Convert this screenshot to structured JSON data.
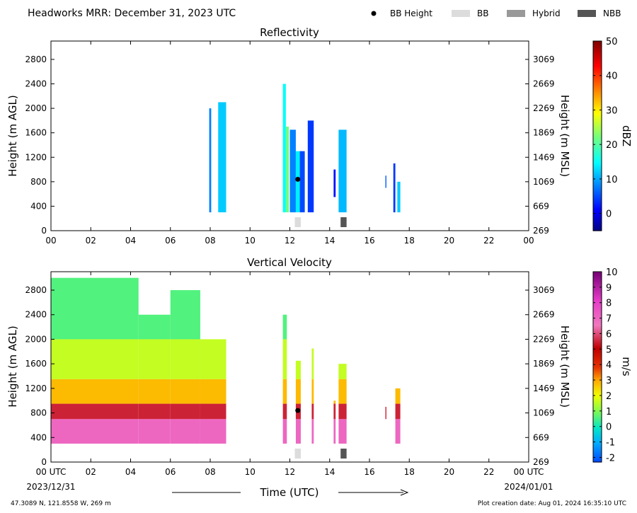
{
  "header": {
    "title": "Headworks MRR:  December 31, 2023 UTC",
    "legend": [
      {
        "label": "BB Height",
        "kind": "dot",
        "color": "#000000"
      },
      {
        "label": "BB",
        "kind": "box",
        "color": "#dcdcdc"
      },
      {
        "label": "Hybrid",
        "kind": "box",
        "color": "#999999"
      },
      {
        "label": "NBB",
        "kind": "box",
        "color": "#555555"
      }
    ]
  },
  "footer": {
    "coords": "47.3089 N, 121.8558 W, 269 m",
    "creation": "Plot creation date: Aug 01, 2024 16:35:10 UTC",
    "xaxis_title": "Time (UTC)",
    "start_date": "2023/12/31",
    "end_date": "2024/01/01"
  },
  "chart_data": [
    {
      "type": "heatmap",
      "title": "Reflectivity",
      "ylabel_left": "Height (m AGL)",
      "ylabel_right": "Height (m MSL)",
      "xlim": [
        0,
        24
      ],
      "ylim": [
        0,
        3100
      ],
      "x_ticks": [
        "00",
        "02",
        "04",
        "06",
        "08",
        "10",
        "12",
        "14",
        "16",
        "18",
        "20",
        "22",
        "00"
      ],
      "y_ticks_left": [
        "0",
        "400",
        "800",
        "1200",
        "1600",
        "2000",
        "2400",
        "2800"
      ],
      "y_ticks_right": [
        "269",
        "669",
        "1069",
        "1469",
        "1869",
        "2269",
        "2669",
        "3069"
      ],
      "colorbar": {
        "label": "dBZ",
        "min": -5,
        "max": 50,
        "ticks": [
          "0",
          "10",
          "20",
          "30",
          "40",
          "50"
        ],
        "colormap": "jet"
      },
      "echo_segments": [
        {
          "t0": 7.95,
          "t1": 8.05,
          "h0": 300,
          "h1": 2000,
          "dbz": 8
        },
        {
          "t0": 8.4,
          "t1": 8.8,
          "h0": 300,
          "h1": 2100,
          "dbz": 12
        },
        {
          "t0": 11.65,
          "t1": 11.8,
          "h0": 300,
          "h1": 2400,
          "dbz": 15
        },
        {
          "t0": 11.8,
          "t1": 11.95,
          "h0": 300,
          "h1": 1700,
          "dbz": 22
        },
        {
          "t0": 12.0,
          "t1": 12.3,
          "h0": 300,
          "h1": 1650,
          "dbz": 8
        },
        {
          "t0": 12.3,
          "t1": 12.5,
          "h0": 300,
          "h1": 1300,
          "dbz": 14
        },
        {
          "t0": 12.5,
          "t1": 12.75,
          "h0": 300,
          "h1": 1300,
          "dbz": 5
        },
        {
          "t0": 12.9,
          "t1": 13.2,
          "h0": 300,
          "h1": 1800,
          "dbz": 4
        },
        {
          "t0": 14.2,
          "t1": 14.3,
          "h0": 550,
          "h1": 1000,
          "dbz": 2
        },
        {
          "t0": 14.45,
          "t1": 14.85,
          "h0": 300,
          "h1": 1650,
          "dbz": 11
        },
        {
          "t0": 16.8,
          "t1": 16.85,
          "h0": 700,
          "h1": 900,
          "dbz": 6
        },
        {
          "t0": 17.2,
          "t1": 17.3,
          "h0": 300,
          "h1": 1100,
          "dbz": 4
        },
        {
          "t0": 17.4,
          "t1": 17.55,
          "h0": 300,
          "h1": 800,
          "dbz": 12
        }
      ],
      "bb_height": [
        {
          "t": 12.4,
          "h": 840
        }
      ],
      "bb_markers": [
        {
          "t0": 12.25,
          "t1": 12.55,
          "type": "BB"
        },
        {
          "t0": 14.55,
          "t1": 14.85,
          "type": "NBB"
        }
      ]
    },
    {
      "type": "heatmap",
      "title": "Vertical Velocity",
      "ylabel_left": "Height (m AGL)",
      "ylabel_right": "Height (m MSL)",
      "xlim": [
        0,
        24
      ],
      "ylim": [
        0,
        3100
      ],
      "x_ticks": [
        "00 UTC",
        "02",
        "04",
        "06",
        "08",
        "10",
        "12",
        "14",
        "16",
        "18",
        "20",
        "22",
        "00 UTC"
      ],
      "y_ticks_left": [
        "0",
        "400",
        "800",
        "1200",
        "1600",
        "2000",
        "2400",
        "2800"
      ],
      "y_ticks_right": [
        "269",
        "669",
        "1069",
        "1469",
        "1869",
        "2269",
        "2669",
        "3069"
      ],
      "colorbar": {
        "label": "m/s",
        "min": -2.3,
        "max": 10,
        "ticks": [
          "-2",
          "-1",
          "0",
          "1",
          "2",
          "3",
          "4",
          "5",
          "6",
          "7",
          "8",
          "9",
          "10"
        ],
        "colormap": "velocity"
      },
      "velocity_layers": [
        {
          "h0": 300,
          "h1": 700,
          "w": 7
        },
        {
          "h0": 700,
          "h1": 950,
          "w": 5.5
        },
        {
          "h0": 950,
          "h1": 1350,
          "w": 2.8
        },
        {
          "h0": 1350,
          "h1": 2000,
          "w": 1.6
        },
        {
          "h0": 2000,
          "h1": 3000,
          "w": 0.6
        }
      ],
      "echo_segments": [
        {
          "t0": 0.0,
          "t1": 4.4,
          "h0": 300,
          "h1": 3000
        },
        {
          "t0": 4.4,
          "t1": 6.0,
          "h0": 300,
          "h1": 2400
        },
        {
          "t0": 6.0,
          "t1": 7.5,
          "h0": 300,
          "h1": 2800
        },
        {
          "t0": 7.5,
          "t1": 8.8,
          "h0": 300,
          "h1": 2000
        },
        {
          "t0": 11.65,
          "t1": 11.85,
          "h0": 300,
          "h1": 2400
        },
        {
          "t0": 12.3,
          "t1": 12.55,
          "h0": 300,
          "h1": 1650
        },
        {
          "t0": 13.1,
          "t1": 13.2,
          "h0": 300,
          "h1": 1850
        },
        {
          "t0": 14.2,
          "t1": 14.3,
          "h0": 300,
          "h1": 1000
        },
        {
          "t0": 14.45,
          "t1": 14.85,
          "h0": 300,
          "h1": 1600
        },
        {
          "t0": 16.8,
          "t1": 16.85,
          "h0": 700,
          "h1": 900
        },
        {
          "t0": 17.3,
          "t1": 17.55,
          "h0": 300,
          "h1": 1200
        }
      ],
      "bb_height": [
        {
          "t": 12.4,
          "h": 840
        }
      ],
      "bb_markers": [
        {
          "t0": 12.25,
          "t1": 12.55,
          "type": "BB"
        },
        {
          "t0": 14.55,
          "t1": 14.85,
          "type": "NBB"
        }
      ]
    }
  ]
}
